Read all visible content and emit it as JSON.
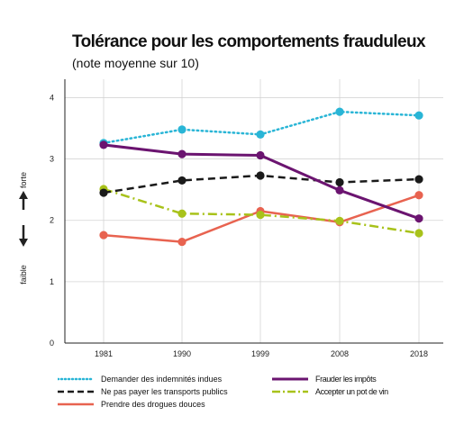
{
  "title": "Tolérance pour les comportements frauduleux",
  "subtitle": "(note moyenne sur 10)",
  "y_axis_words": {
    "top": "forte",
    "bottom": "faible"
  },
  "chart_data": {
    "type": "line",
    "x": [
      "1981",
      "1990",
      "1999",
      "2008",
      "2018"
    ],
    "ylim": [
      0,
      4.3
    ],
    "yticks": [
      "0",
      "1",
      "2",
      "3",
      "4"
    ],
    "grid": true,
    "legend_position": "bottom",
    "series": [
      {
        "name": "Demander des indemnités indues",
        "color": "#29b5d6",
        "dash": "dotted",
        "values": [
          3.26,
          3.48,
          3.4,
          3.77,
          3.71
        ]
      },
      {
        "name": "Frauder les impôts",
        "color": "#6b1470",
        "dash": "solid",
        "values": [
          3.23,
          3.08,
          3.06,
          2.49,
          2.03
        ]
      },
      {
        "name": "Ne pas payer les transports publics",
        "color": "#1a1a1a",
        "dash": "dashed",
        "values": [
          2.45,
          2.65,
          2.73,
          2.62,
          2.67
        ]
      },
      {
        "name": "Accepter un pot de vin",
        "color": "#a8c21a",
        "dash": "dashdot",
        "values": [
          2.51,
          2.11,
          2.09,
          1.99,
          1.79
        ]
      },
      {
        "name": "Prendre des drogues douces",
        "color": "#e86350",
        "dash": "solid",
        "values": [
          1.76,
          1.65,
          2.15,
          1.97,
          2.41
        ]
      }
    ]
  }
}
